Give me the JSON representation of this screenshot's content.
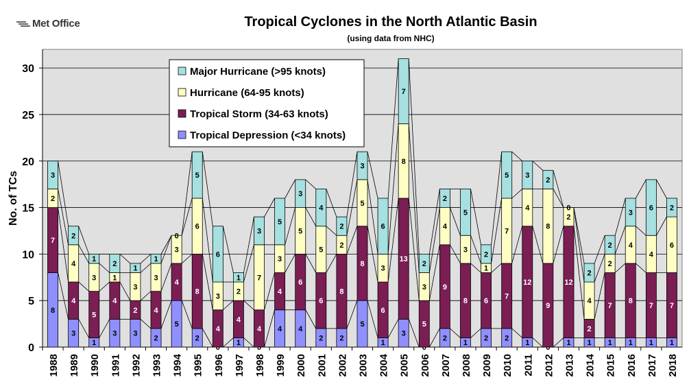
{
  "logo_text": "Met Office",
  "chart_data": {
    "type": "bar",
    "stacked": true,
    "title": "Tropical Cyclones in the North Atlantic Basin",
    "subtitle": "(using data from NHC)",
    "xlabel": "",
    "ylabel": "No. of TCs",
    "ylim": [
      0,
      32
    ],
    "yticks": [
      0,
      5,
      10,
      15,
      20,
      25,
      30
    ],
    "grid": true,
    "legend_position": "top-left",
    "categories": [
      "1988",
      "1989",
      "1990",
      "1991",
      "1992",
      "1993",
      "1994",
      "1995",
      "1996",
      "1997",
      "1998",
      "1999",
      "2000",
      "2001",
      "2002",
      "2003",
      "2004",
      "2005",
      "2006",
      "2007",
      "2008",
      "2009",
      "2010",
      "2011",
      "2012",
      "2013",
      "2014",
      "2015",
      "2016",
      "2017",
      "2018"
    ],
    "series": [
      {
        "name": "Tropical Depression (<34 knots)",
        "color": "#8f8fff",
        "values": [
          8,
          3,
          1,
          3,
          3,
          2,
          5,
          2,
          0,
          1,
          0,
          4,
          4,
          2,
          2,
          5,
          1,
          3,
          0,
          2,
          1,
          2,
          2,
          1,
          0,
          1,
          1,
          1,
          1,
          1,
          1
        ]
      },
      {
        "name": "Tropical Storm (34-63 knots)",
        "color": "#7a1e54",
        "values": [
          7,
          4,
          5,
          4,
          2,
          4,
          4,
          8,
          4,
          4,
          4,
          4,
          6,
          6,
          8,
          8,
          6,
          13,
          5,
          9,
          8,
          6,
          7,
          12,
          9,
          12,
          2,
          7,
          8,
          7,
          7
        ]
      },
      {
        "name": "Hurricane (64-95 knots)",
        "color": "#ffffc4",
        "values": [
          2,
          4,
          3,
          1,
          3,
          3,
          3,
          6,
          3,
          2,
          7,
          3,
          5,
          5,
          2,
          5,
          3,
          8,
          3,
          4,
          3,
          1,
          7,
          4,
          8,
          2,
          4,
          2,
          4,
          4,
          6
        ]
      },
      {
        "name": "Major Hurricane (>95 knots)",
        "color": "#a6e0e0",
        "values": [
          3,
          2,
          1,
          2,
          1,
          1,
          0,
          5,
          6,
          1,
          3,
          5,
          3,
          4,
          2,
          3,
          6,
          7,
          2,
          2,
          5,
          2,
          5,
          3,
          2,
          0,
          2,
          2,
          3,
          6,
          2
        ]
      }
    ]
  }
}
